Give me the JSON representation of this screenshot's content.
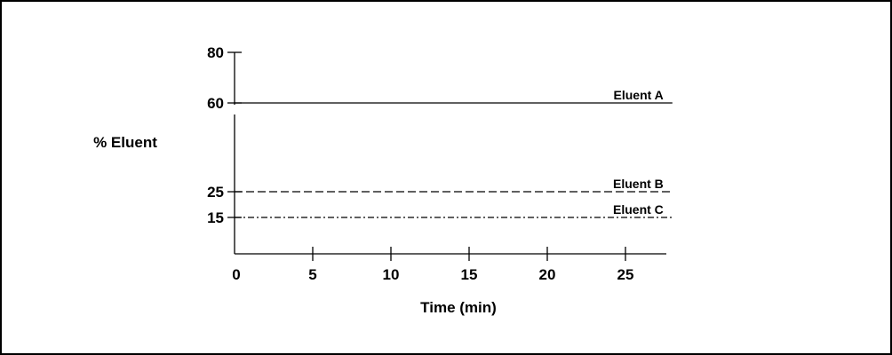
{
  "chart_data": {
    "type": "line",
    "title": "",
    "xlabel": "Time (min)",
    "ylabel": "% Eluent",
    "x_ticks": [
      "0",
      "5",
      "10",
      "15",
      "20",
      "25"
    ],
    "y_ticks": [
      {
        "label": "15",
        "value": 15
      },
      {
        "label": "25",
        "value": 25
      },
      {
        "label": "60",
        "value": 60
      },
      {
        "label": "80",
        "value": 80
      }
    ],
    "y_axis_break": true,
    "grid": false,
    "series": [
      {
        "name": "Eluent A",
        "x": [
          0,
          28
        ],
        "values": [
          60,
          60
        ],
        "style": "solid"
      },
      {
        "name": "Eluent B",
        "x": [
          0,
          28
        ],
        "values": [
          25,
          25
        ],
        "style": "dashed"
      },
      {
        "name": "Eluent C",
        "x": [
          0,
          28
        ],
        "values": [
          15,
          15
        ],
        "style": "dash-dot"
      }
    ]
  },
  "colors": {
    "line": "#000000",
    "background": "#ffffff"
  }
}
